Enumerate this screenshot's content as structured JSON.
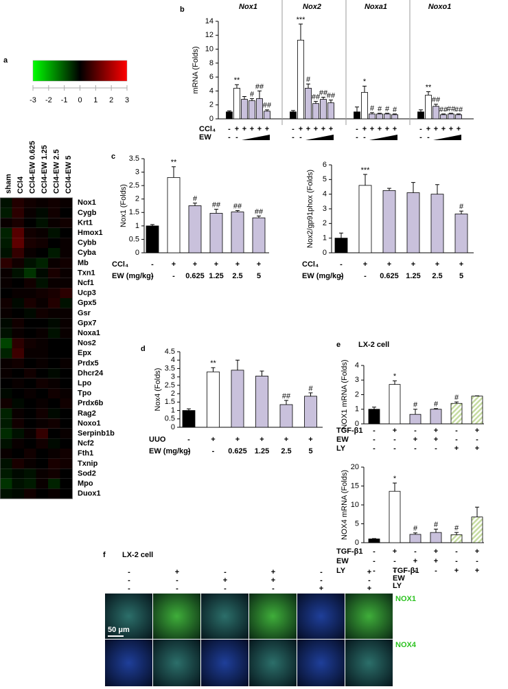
{
  "chart_data": [
    {
      "type": "heatmap",
      "panel": "a",
      "colorbar_lim": [
        -3,
        3
      ],
      "colorbar_ticks": [
        -3,
        -2,
        -1,
        0,
        1,
        2,
        3
      ],
      "colors": [
        "#00ff00",
        "#000000",
        "#ff0000"
      ],
      "columns": [
        "sham",
        "CCl4",
        "CCl4-EW 0.625",
        "CCl4-EW 1.25",
        "CCl4-EW 2.5",
        "CCl4-EW 5"
      ],
      "rows": [
        "Nox1",
        "Cygb",
        "Krt1",
        "Hmox1",
        "Cybb",
        "Cyba",
        "Mb",
        "Txn1",
        "Ncf1",
        "Ucp3",
        "Gpx5",
        "Gsr",
        "Gpx7",
        "Noxa1",
        "Nos2",
        "Epx",
        "Prdx5",
        "Dhcr24",
        "Lpo",
        "Tpo",
        "Prdx6b",
        "Rag2",
        "Noxo1",
        "Serpinb1b",
        "Ncf2",
        "Fth1",
        "Txnip",
        "Sod2",
        "Mpo",
        "Duox1"
      ],
      "values": [
        [
          -0.2,
          0.4,
          0.2,
          0.1,
          0.2,
          0.1
        ],
        [
          -0.3,
          0.5,
          0.1,
          -0.1,
          0.2,
          0
        ],
        [
          0.1,
          0.3,
          0,
          -0.2,
          0.1,
          0.2
        ],
        [
          -0.4,
          1.0,
          0.2,
          0.1,
          -0.2,
          0
        ],
        [
          -0.3,
          1.1,
          0.3,
          0.2,
          0,
          0.1
        ],
        [
          -0.2,
          0.6,
          0.1,
          0,
          -0.3,
          0.1
        ],
        [
          0.5,
          0.2,
          -0.2,
          -0.4,
          0.1,
          0.2
        ],
        [
          0.1,
          -0.2,
          -0.6,
          -0.1,
          0.3,
          0.1
        ],
        [
          0.1,
          0,
          0.2,
          -0.2,
          0.1,
          0.1
        ],
        [
          0,
          0.1,
          0.1,
          0.2,
          0.3,
          0.5
        ],
        [
          0.2,
          -0.1,
          0.3,
          0.1,
          0.4,
          -0.2
        ],
        [
          0.1,
          0,
          -0.1,
          0.2,
          0.1,
          0.1
        ],
        [
          -0.1,
          0.2,
          0,
          0,
          -0.1,
          0.1
        ],
        [
          -0.2,
          0.1,
          0,
          0.1,
          -0.2,
          0.1
        ],
        [
          -0.8,
          0.5,
          0.2,
          0.1,
          0,
          0
        ],
        [
          -0.4,
          0.7,
          0.1,
          0.1,
          0,
          0
        ],
        [
          0.1,
          0.2,
          0,
          0.1,
          0,
          0.1
        ],
        [
          0.1,
          0,
          0.2,
          0,
          -0.1,
          0
        ],
        [
          0,
          0.1,
          0,
          0.2,
          0.1,
          0
        ],
        [
          -0.1,
          0,
          0.1,
          0,
          0.2,
          0.1
        ],
        [
          0.2,
          -0.1,
          0,
          0.1,
          0,
          0.2
        ],
        [
          -0.4,
          0.1,
          0,
          0.2,
          -0.1,
          0
        ],
        [
          -0.3,
          0.2,
          0,
          0.1,
          0.2,
          0
        ],
        [
          -0.5,
          -0.2,
          0.1,
          0.6,
          0,
          0.1
        ],
        [
          -0.2,
          0.1,
          0,
          0.2,
          -0.1,
          0
        ],
        [
          0.1,
          0,
          0.2,
          0,
          0.1,
          0.2
        ],
        [
          -0.2,
          0.3,
          0.1,
          0,
          0.3,
          0.2
        ],
        [
          -0.3,
          -0.1,
          -0.2,
          0.1,
          0.2,
          0
        ],
        [
          -0.6,
          -0.2,
          -0.3,
          0.1,
          -0.4,
          0
        ],
        [
          -0.2,
          -0.1,
          0.2,
          0,
          0.1,
          0
        ]
      ]
    },
    {
      "type": "bar",
      "panel": "b",
      "ylabel": "mRNA (Folds)",
      "ylim": [
        0,
        14
      ],
      "yticks": [
        0,
        2,
        4,
        6,
        8,
        10,
        12,
        14
      ],
      "condition_labels": [
        "CCl₄",
        "EW"
      ],
      "groups": [
        {
          "title": "Nox1",
          "values": [
            1.0,
            4.4,
            2.8,
            2.6,
            2.9,
            1.1
          ],
          "errors": [
            0.15,
            0.5,
            0.4,
            0.3,
            1.1,
            0.2
          ],
          "annotations": [
            null,
            "**",
            null,
            "#",
            "##",
            "##"
          ],
          "bar_colors": [
            "#000000",
            "#ffffff",
            "#c9c1dc",
            "#c9c1dc",
            "#c9c1dc",
            "#c9c1dc"
          ],
          "conditions": [
            [
              "-",
              "+",
              "+",
              "+",
              "+",
              "+"
            ],
            [
              "-",
              "-",
              null,
              null,
              null,
              null
            ]
          ]
        },
        {
          "title": "Nox2",
          "values": [
            1.0,
            11.3,
            4.4,
            2.2,
            2.8,
            2.3
          ],
          "errors": [
            0.2,
            2.3,
            0.6,
            0.3,
            0.3,
            0.4
          ],
          "annotations": [
            null,
            "***",
            "#",
            "##",
            "##",
            "##"
          ],
          "bar_colors": [
            "#000000",
            "#ffffff",
            "#c9c1dc",
            "#c9c1dc",
            "#c9c1dc",
            "#c9c1dc"
          ],
          "conditions": [
            [
              "-",
              "+",
              "+",
              "+",
              "+",
              "+"
            ],
            [
              "-",
              "-",
              null,
              null,
              null,
              null
            ]
          ]
        },
        {
          "title": "Noxa1",
          "values": [
            1.0,
            3.8,
            0.7,
            0.7,
            0.7,
            0.6
          ],
          "errors": [
            0.7,
            0.9,
            0.2,
            0.1,
            0.1,
            0.1
          ],
          "annotations": [
            null,
            "*",
            "#",
            "#",
            "#",
            "#"
          ],
          "bar_colors": [
            "#000000",
            "#ffffff",
            "#c9c1dc",
            "#c9c1dc",
            "#c9c1dc",
            "#c9c1dc"
          ],
          "conditions": [
            [
              "-",
              "+",
              "+",
              "+",
              "+",
              "+"
            ],
            [
              "-",
              "-",
              null,
              null,
              null,
              null
            ]
          ]
        },
        {
          "title": "Noxo1",
          "values": [
            1.0,
            3.4,
            1.8,
            0.6,
            0.7,
            0.6
          ],
          "errors": [
            0.3,
            0.5,
            0.3,
            0.1,
            0.1,
            0.1
          ],
          "annotations": [
            null,
            "**",
            "##",
            "##",
            "##",
            "##"
          ],
          "bar_colors": [
            "#000000",
            "#ffffff",
            "#c9c1dc",
            "#c9c1dc",
            "#c9c1dc",
            "#c9c1dc"
          ],
          "conditions": [
            [
              "-",
              "+",
              "+",
              "+",
              "+",
              "+"
            ],
            [
              "-",
              "-",
              null,
              null,
              null,
              null
            ]
          ]
        }
      ]
    },
    {
      "type": "bar",
      "panel": "c",
      "ylabel": "Nox1 (Folds)",
      "ylim": [
        0,
        3.5
      ],
      "yticks": [
        0,
        0.5,
        1,
        1.5,
        2,
        2.5,
        3,
        3.5
      ],
      "condition_labels": [
        "CCl₄",
        "EW (mg/kg)"
      ],
      "groups": [
        {
          "values": [
            1.0,
            2.8,
            1.75,
            1.47,
            1.52,
            1.3
          ],
          "errors": [
            0.05,
            0.4,
            0.1,
            0.15,
            0.05,
            0.07
          ],
          "annotations": [
            null,
            "**",
            "#",
            "##",
            "##",
            "##"
          ],
          "bar_colors": [
            "#000000",
            "#ffffff",
            "#c9c1dc",
            "#c9c1dc",
            "#c9c1dc",
            "#c9c1dc"
          ],
          "conditions": [
            [
              "-",
              "+",
              "+",
              "+",
              "+",
              "+"
            ],
            [
              "-",
              "-",
              "0.625",
              "1.25",
              "2.5",
              "5"
            ]
          ]
        }
      ]
    },
    {
      "type": "bar",
      "ylabel": "Nox2/gp91phox (Folds)",
      "ylim": [
        0,
        6
      ],
      "yticks": [
        0,
        1,
        2,
        3,
        4,
        5,
        6
      ],
      "condition_labels": [
        "CCl₄",
        "EW (mg/kg)"
      ],
      "groups": [
        {
          "values": [
            1.0,
            4.6,
            4.25,
            4.1,
            4.0,
            2.65
          ],
          "errors": [
            0.35,
            0.75,
            0.15,
            0.7,
            0.65,
            0.2
          ],
          "annotations": [
            null,
            "***",
            null,
            null,
            null,
            "#"
          ],
          "bar_colors": [
            "#000000",
            "#ffffff",
            "#c9c1dc",
            "#c9c1dc",
            "#c9c1dc",
            "#c9c1dc"
          ],
          "conditions": [
            [
              "-",
              "+",
              "+",
              "+",
              "+",
              "+"
            ],
            [
              "-",
              "-",
              "0.625",
              "1.25",
              "2.5",
              "5"
            ]
          ]
        }
      ]
    },
    {
      "type": "bar",
      "panel": "d",
      "ylabel": "Nox4 (Folds)",
      "ylim": [
        0,
        4.5
      ],
      "yticks": [
        0,
        0.5,
        1,
        1.5,
        2,
        2.5,
        3,
        3.5,
        4,
        4.5
      ],
      "condition_labels": [
        "UUO",
        "EW (mg/kg)"
      ],
      "groups": [
        {
          "values": [
            1.0,
            3.3,
            3.4,
            3.05,
            1.35,
            1.85
          ],
          "errors": [
            0.1,
            0.25,
            0.6,
            0.3,
            0.25,
            0.2
          ],
          "annotations": [
            null,
            "**",
            null,
            null,
            "##",
            "#"
          ],
          "bar_colors": [
            "#000000",
            "#ffffff",
            "#c9c1dc",
            "#c9c1dc",
            "#c9c1dc",
            "#c9c1dc"
          ],
          "conditions": [
            [
              "-",
              "+",
              "+",
              "+",
              "+",
              "+"
            ],
            [
              "-",
              "-",
              "0.625",
              "1.25",
              "2.5",
              "5"
            ]
          ]
        }
      ]
    },
    {
      "type": "bar",
      "panel": "e",
      "title": "LX-2 cell",
      "ylabel": "NOX1 mRNA (Folds)",
      "ylim": [
        0,
        4
      ],
      "yticks": [
        0,
        1,
        2,
        3,
        4
      ],
      "condition_labels": [
        "TGF-β1",
        "EW",
        "LY"
      ],
      "groups": [
        {
          "values": [
            1.0,
            2.7,
            0.65,
            1.0,
            1.4,
            1.9
          ],
          "errors": [
            0.15,
            0.25,
            0.35,
            0.05,
            0.1,
            0.02
          ],
          "annotations": [
            null,
            "*",
            "#",
            "#",
            "#",
            null
          ],
          "bar_colors": [
            "#000000",
            "#ffffff",
            "#c9c1dc",
            "#c9c1dc",
            "#c5dba0",
            "#c5dba0"
          ],
          "hatched": [
            false,
            false,
            false,
            false,
            true,
            true
          ],
          "conditions": [
            [
              "-",
              "+",
              "-",
              "+",
              "-",
              "+"
            ],
            [
              "-",
              "-",
              "+",
              "+",
              "-",
              "-"
            ],
            [
              "-",
              "-",
              "-",
              "-",
              "+",
              "+"
            ]
          ]
        }
      ]
    },
    {
      "type": "bar",
      "ylabel": "NOX4 mRNA (Folds)",
      "ylim": [
        0,
        20
      ],
      "yticks": [
        0,
        5,
        10,
        15,
        20
      ],
      "condition_labels": [
        "TGF-β1",
        "EW",
        "LY"
      ],
      "groups": [
        {
          "values": [
            1.0,
            13.6,
            2.2,
            2.7,
            2.1,
            6.8
          ],
          "errors": [
            0.1,
            2.2,
            0.4,
            0.9,
            0.6,
            2.6
          ],
          "annotations": [
            null,
            "*",
            "#",
            "#",
            "#",
            null
          ],
          "bar_colors": [
            "#000000",
            "#ffffff",
            "#c9c1dc",
            "#c9c1dc",
            "#c5dba0",
            "#c5dba0"
          ],
          "hatched": [
            false,
            false,
            false,
            false,
            true,
            true
          ],
          "conditions": [
            [
              "-",
              "+",
              "-",
              "+",
              "-",
              "+"
            ],
            [
              "-",
              "-",
              "+",
              "+",
              "-",
              "-"
            ],
            [
              "-",
              "-",
              "-",
              "-",
              "+",
              "+"
            ]
          ]
        }
      ]
    }
  ],
  "image_panel": {
    "panel": "f",
    "title": "LX-2 cell",
    "condition_labels": [
      "TGF-β1",
      "EW",
      "LY"
    ],
    "conditions": [
      [
        "-",
        "+",
        "-",
        "+",
        "-",
        "+"
      ],
      [
        "-",
        "-",
        "+",
        "+",
        "-",
        "-"
      ],
      [
        "-",
        "-",
        "-",
        "-",
        "+",
        "+"
      ]
    ],
    "rows": [
      "NOX1",
      "NOX4"
    ],
    "scale_bar": "50 μm"
  }
}
